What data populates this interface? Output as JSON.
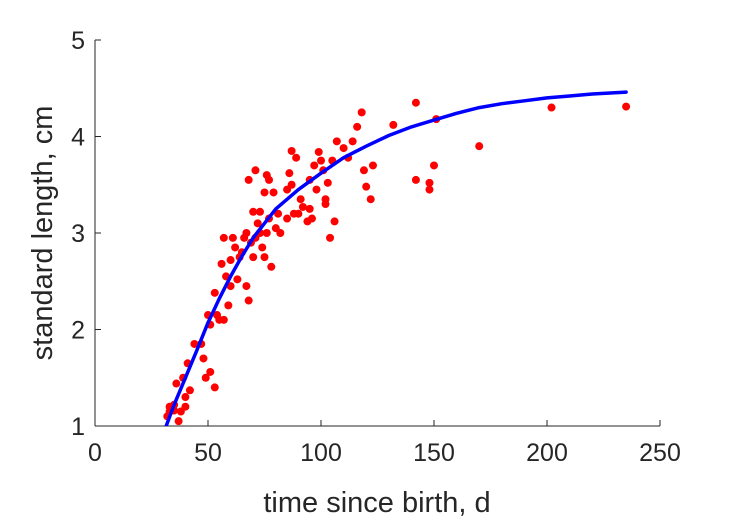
{
  "chart_data": {
    "type": "scatter",
    "title": "",
    "xlabel": "time since birth, d",
    "ylabel": "standard length, cm",
    "xlim": [
      0,
      250
    ],
    "ylim": [
      1,
      5
    ],
    "xticks": [
      0,
      50,
      100,
      150,
      200,
      250
    ],
    "yticks": [
      1,
      2,
      3,
      4,
      5
    ],
    "xtick_labels": [
      "0",
      "50",
      "100",
      "150",
      "200",
      "250"
    ],
    "ytick_labels": [
      "1",
      "2",
      "3",
      "4",
      "5"
    ],
    "grid": false,
    "series": [
      {
        "kind": "points",
        "color": "#ff0000",
        "points": [
          [
            32,
            1.1
          ],
          [
            33,
            1.15
          ],
          [
            33,
            1.2
          ],
          [
            35,
            1.22
          ],
          [
            35,
            1.16
          ],
          [
            36,
            1.44
          ],
          [
            37,
            1.05
          ],
          [
            38,
            1.15
          ],
          [
            39,
            1.5
          ],
          [
            40,
            1.3
          ],
          [
            40,
            1.2
          ],
          [
            41,
            1.65
          ],
          [
            42,
            1.37
          ],
          [
            44,
            1.85
          ],
          [
            47,
            1.85
          ],
          [
            48,
            1.7
          ],
          [
            49,
            1.5
          ],
          [
            50,
            2.15
          ],
          [
            51,
            2.05
          ],
          [
            51,
            1.56
          ],
          [
            53,
            2.38
          ],
          [
            53,
            1.4
          ],
          [
            54,
            2.15
          ],
          [
            55,
            2.1
          ],
          [
            56,
            2.68
          ],
          [
            57,
            2.1
          ],
          [
            57,
            2.95
          ],
          [
            58,
            2.55
          ],
          [
            59,
            2.25
          ],
          [
            60,
            2.72
          ],
          [
            60,
            2.45
          ],
          [
            61,
            2.95
          ],
          [
            62,
            2.85
          ],
          [
            63,
            2.52
          ],
          [
            64,
            2.75
          ],
          [
            65,
            2.8
          ],
          [
            66,
            2.95
          ],
          [
            67,
            3.0
          ],
          [
            67,
            2.45
          ],
          [
            68,
            3.55
          ],
          [
            68,
            2.3
          ],
          [
            69,
            2.9
          ],
          [
            70,
            3.22
          ],
          [
            70,
            2.75
          ],
          [
            71,
            3.65
          ],
          [
            71,
            2.95
          ],
          [
            72,
            3.1
          ],
          [
            73,
            3.22
          ],
          [
            73,
            3.0
          ],
          [
            74,
            2.85
          ],
          [
            75,
            2.75
          ],
          [
            75,
            3.42
          ],
          [
            76,
            3.6
          ],
          [
            76,
            3.0
          ],
          [
            77,
            3.55
          ],
          [
            77,
            3.15
          ],
          [
            78,
            2.65
          ],
          [
            79,
            3.42
          ],
          [
            80,
            3.05
          ],
          [
            81,
            3.2
          ],
          [
            82,
            3.0
          ],
          [
            85,
            3.45
          ],
          [
            85,
            3.15
          ],
          [
            86,
            3.62
          ],
          [
            87,
            3.85
          ],
          [
            87,
            3.5
          ],
          [
            88,
            3.2
          ],
          [
            89,
            3.78
          ],
          [
            90,
            3.2
          ],
          [
            91,
            3.35
          ],
          [
            92,
            3.27
          ],
          [
            94,
            3.12
          ],
          [
            95,
            3.55
          ],
          [
            95,
            3.25
          ],
          [
            96,
            3.15
          ],
          [
            97,
            3.7
          ],
          [
            98,
            3.45
          ],
          [
            99,
            3.84
          ],
          [
            100,
            3.75
          ],
          [
            101,
            3.65
          ],
          [
            102,
            3.35
          ],
          [
            102,
            3.3
          ],
          [
            103,
            3.52
          ],
          [
            104,
            2.95
          ],
          [
            105,
            3.75
          ],
          [
            106,
            3.12
          ],
          [
            107,
            3.95
          ],
          [
            110,
            3.88
          ],
          [
            112,
            3.78
          ],
          [
            114,
            3.95
          ],
          [
            116,
            4.1
          ],
          [
            118,
            4.25
          ],
          [
            119,
            3.65
          ],
          [
            120,
            3.48
          ],
          [
            122,
            3.35
          ],
          [
            123,
            3.7
          ],
          [
            132,
            4.12
          ],
          [
            142,
            4.35
          ],
          [
            142,
            3.55
          ],
          [
            148,
            3.52
          ],
          [
            148,
            3.45
          ],
          [
            150,
            3.7
          ],
          [
            151,
            4.18
          ],
          [
            170,
            3.9
          ],
          [
            202,
            4.3
          ],
          [
            235,
            4.31
          ]
        ]
      },
      {
        "kind": "fit-curve",
        "color": "#0000ff",
        "x": [
          31,
          35,
          40,
          45,
          50,
          55,
          60,
          65,
          70,
          75,
          80,
          90,
          100,
          110,
          120,
          130,
          140,
          150,
          160,
          170,
          180,
          190,
          200,
          210,
          220,
          235
        ],
        "y": [
          0.97,
          1.22,
          1.5,
          1.78,
          2.07,
          2.32,
          2.55,
          2.76,
          2.95,
          3.1,
          3.25,
          3.45,
          3.62,
          3.78,
          3.9,
          4.01,
          4.1,
          4.17,
          4.24,
          4.3,
          4.34,
          4.37,
          4.4,
          4.42,
          4.44,
          4.46
        ]
      }
    ]
  }
}
